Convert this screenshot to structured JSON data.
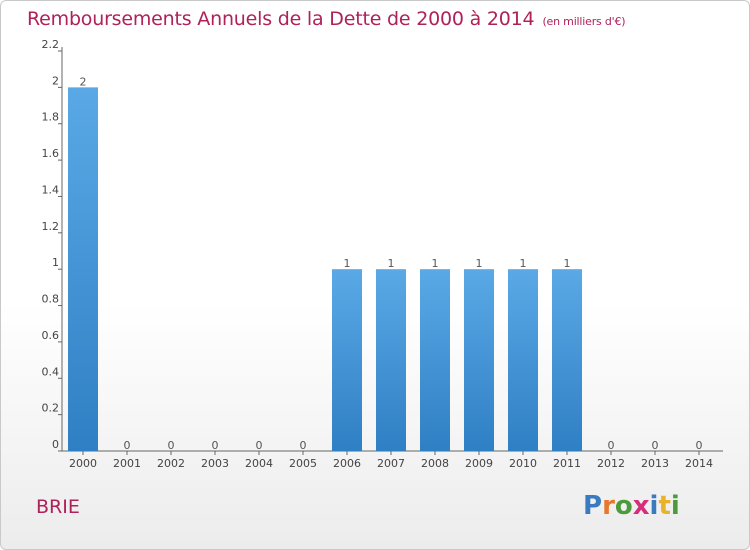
{
  "title": "Remboursements Annuels de la Dette de 2000 à 2014",
  "unit": "(en milliers d'€)",
  "commune": "BRIE",
  "logo": {
    "text": "Proxiti",
    "colors": [
      "#3a7ac0",
      "#e8762b",
      "#4b9b3a",
      "#d62e7a",
      "#3a7ac0",
      "#e8b22b",
      "#4b9b3a"
    ]
  },
  "colors": {
    "bar_top": "#5aa9e6",
    "bar_bottom": "#2f7fc4",
    "title": "#b0215a",
    "axis": "#666666",
    "grid": "#dddddd"
  },
  "chart_data": {
    "type": "bar",
    "categories": [
      "2000",
      "2001",
      "2002",
      "2003",
      "2004",
      "2005",
      "2006",
      "2007",
      "2008",
      "2009",
      "2010",
      "2011",
      "2012",
      "2013",
      "2014"
    ],
    "values": [
      2,
      0,
      0,
      0,
      0,
      0,
      1,
      1,
      1,
      1,
      1,
      1,
      0,
      0,
      0
    ],
    "value_labels": [
      "2",
      "0",
      "0",
      "0",
      "0",
      "0",
      "1",
      "1",
      "1",
      "1",
      "1",
      "1",
      "0",
      "0",
      "0"
    ],
    "ylim": [
      0,
      2.2
    ],
    "yticks": [
      0,
      0.2,
      0.4,
      0.6,
      0.8,
      1,
      1.2,
      1.4,
      1.6,
      1.8,
      2,
      2.2
    ],
    "ytick_labels": [
      "0",
      "0.2",
      "0.4",
      "0.6",
      "0.8",
      "1",
      "1.2",
      "1.4",
      "1.6",
      "1.8",
      "2",
      "2.2"
    ],
    "title": "Remboursements Annuels de la Dette de 2000 à 2014",
    "xlabel": "",
    "ylabel": "",
    "grid": false,
    "legend": "none"
  }
}
